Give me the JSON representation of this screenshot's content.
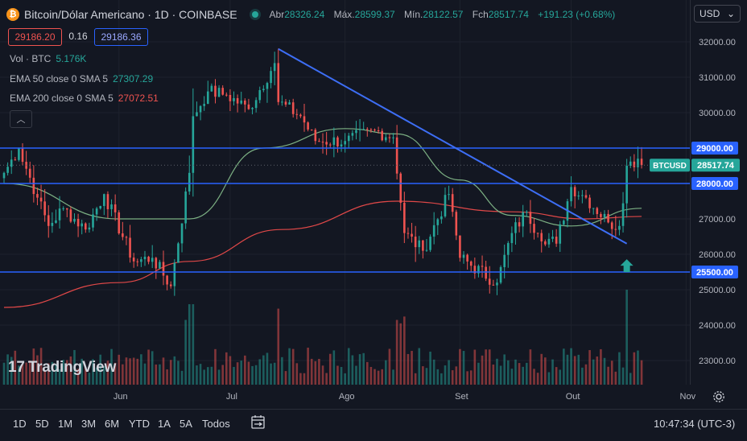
{
  "header": {
    "symbol_title": "Bitcoin/Dólar Americano · 1D · COINBASE",
    "open_label": "Abr",
    "open_value": "28326.24",
    "high_label": "Máx.",
    "high_value": "28599.37",
    "low_label": "Mín.",
    "low_value": "28122.57",
    "close_label": "Fch",
    "close_value": "28517.74",
    "change_value": "+191.23 (+0.68%)",
    "sell_price": "29186.20",
    "spread": "0.16",
    "buy_price": "29186.36",
    "currency": "USD",
    "currency_caret": "⌄"
  },
  "legend": {
    "vol_label": "Vol · BTC",
    "vol_value": "5.176K",
    "ema50_label": "EMA 50 close 0 SMA 5",
    "ema50_value": "27307.29",
    "ema200_label": "EMA 200 close 0 SMA 5",
    "ema200_value": "27072.51",
    "collapse_glyph": "︿"
  },
  "colors": {
    "up": "#26a69a",
    "down": "#ef5350",
    "ema50": "#7cb083",
    "ema200": "#e04848",
    "hline": "#2962ff",
    "trendline": "#3d6ef5",
    "arrow": "#26a69a",
    "background": "#131722"
  },
  "watermark": {
    "text": "TradingView",
    "mark": "17"
  },
  "toolbar": {
    "timeframes": [
      "1D",
      "5D",
      "1M",
      "3M",
      "6M",
      "YTD",
      "1A",
      "5A",
      "Todos"
    ],
    "calendar_icon": "calendar-range-icon",
    "clock": "10:47:34 (UTC-3)"
  },
  "chart_data": {
    "type": "candlestick",
    "x_ticks": [
      "Jun",
      "Jul",
      "Ago",
      "Set",
      "Out",
      "Nov"
    ],
    "y_ticks": [
      "32000.00",
      "31000.00",
      "30000.00",
      "29000.00",
      "28000.00",
      "27000.00",
      "26000.00",
      "25500.00",
      "25000.00",
      "24000.00",
      "23000.00"
    ],
    "last_price_label": "BTCUSD",
    "last_price": "28517.74",
    "horizontal_lines": [
      {
        "label": "29000.00",
        "value": 29000
      },
      {
        "label": "28000.00",
        "value": 28000
      },
      {
        "label": "25500.00",
        "value": 25500
      }
    ],
    "trendline": {
      "from": [
        "Jul 14",
        31800
      ],
      "to": [
        "Out 16",
        26300
      ]
    },
    "arrow": {
      "date": "Out 16",
      "direction": "up"
    },
    "waypoints": [
      [
        "May 1",
        28300
      ],
      [
        "May 5",
        29000
      ],
      [
        "May 10",
        27600
      ],
      [
        "May 13",
        26800
      ],
      [
        "May 17",
        27300
      ],
      [
        "May 23",
        26700
      ],
      [
        "May 28",
        27700
      ],
      [
        "Jun 5",
        25800
      ],
      [
        "Jun 10",
        25900
      ],
      [
        "Jun 15",
        25100
      ],
      [
        "Jun 20",
        28300
      ],
      [
        "Jun 21",
        29900
      ],
      [
        "Jun 25",
        30600
      ],
      [
        "Jun 30",
        30500
      ],
      [
        "Jul 6",
        30100
      ],
      [
        "Jul 13",
        31400
      ],
      [
        "Jul 14",
        30300
      ],
      [
        "Jul 20",
        29900
      ],
      [
        "Jul 24",
        29200
      ],
      [
        "Aug 1",
        29200
      ],
      [
        "Aug 9",
        29500
      ],
      [
        "Aug 14",
        29300
      ],
      [
        "Aug 17",
        26600
      ],
      [
        "Aug 22",
        26100
      ],
      [
        "Aug 29",
        27700
      ],
      [
        "Aug 30",
        27200
      ],
      [
        "Sep 1",
        25900
      ],
      [
        "Sep 11",
        25200
      ],
      [
        "Sep 15",
        26600
      ],
      [
        "Sep 19",
        27200
      ],
      [
        "Sep 22",
        26600
      ],
      [
        "Sep 27",
        26300
      ],
      [
        "Oct 1",
        27900
      ],
      [
        "Oct 5",
        27600
      ],
      [
        "Oct 11",
        26900
      ],
      [
        "Oct 14",
        26800
      ],
      [
        "Oct 16",
        28500
      ],
      [
        "Oct 19",
        28700
      ],
      [
        "Oct 20",
        28520
      ]
    ],
    "ema50_points": [
      [
        "May 1",
        28000
      ],
      [
        "Jun 1",
        27000
      ],
      [
        "Jun 20",
        27000
      ],
      [
        "Jul 10",
        29000
      ],
      [
        "Aug 1",
        29550
      ],
      [
        "Aug 15",
        29400
      ],
      [
        "Sep 1",
        28100
      ],
      [
        "Sep 15",
        27100
      ],
      [
        "Oct 1",
        26800
      ],
      [
        "Oct 20",
        27300
      ]
    ],
    "ema200_points": [
      [
        "May 1",
        24500
      ],
      [
        "Jun 1",
        25200
      ],
      [
        "Jun 20",
        25800
      ],
      [
        "Jul 15",
        26700
      ],
      [
        "Aug 15",
        27500
      ],
      [
        "Sep 15",
        27200
      ],
      [
        "Oct 5",
        27000
      ],
      [
        "Oct 20",
        27070
      ]
    ]
  }
}
